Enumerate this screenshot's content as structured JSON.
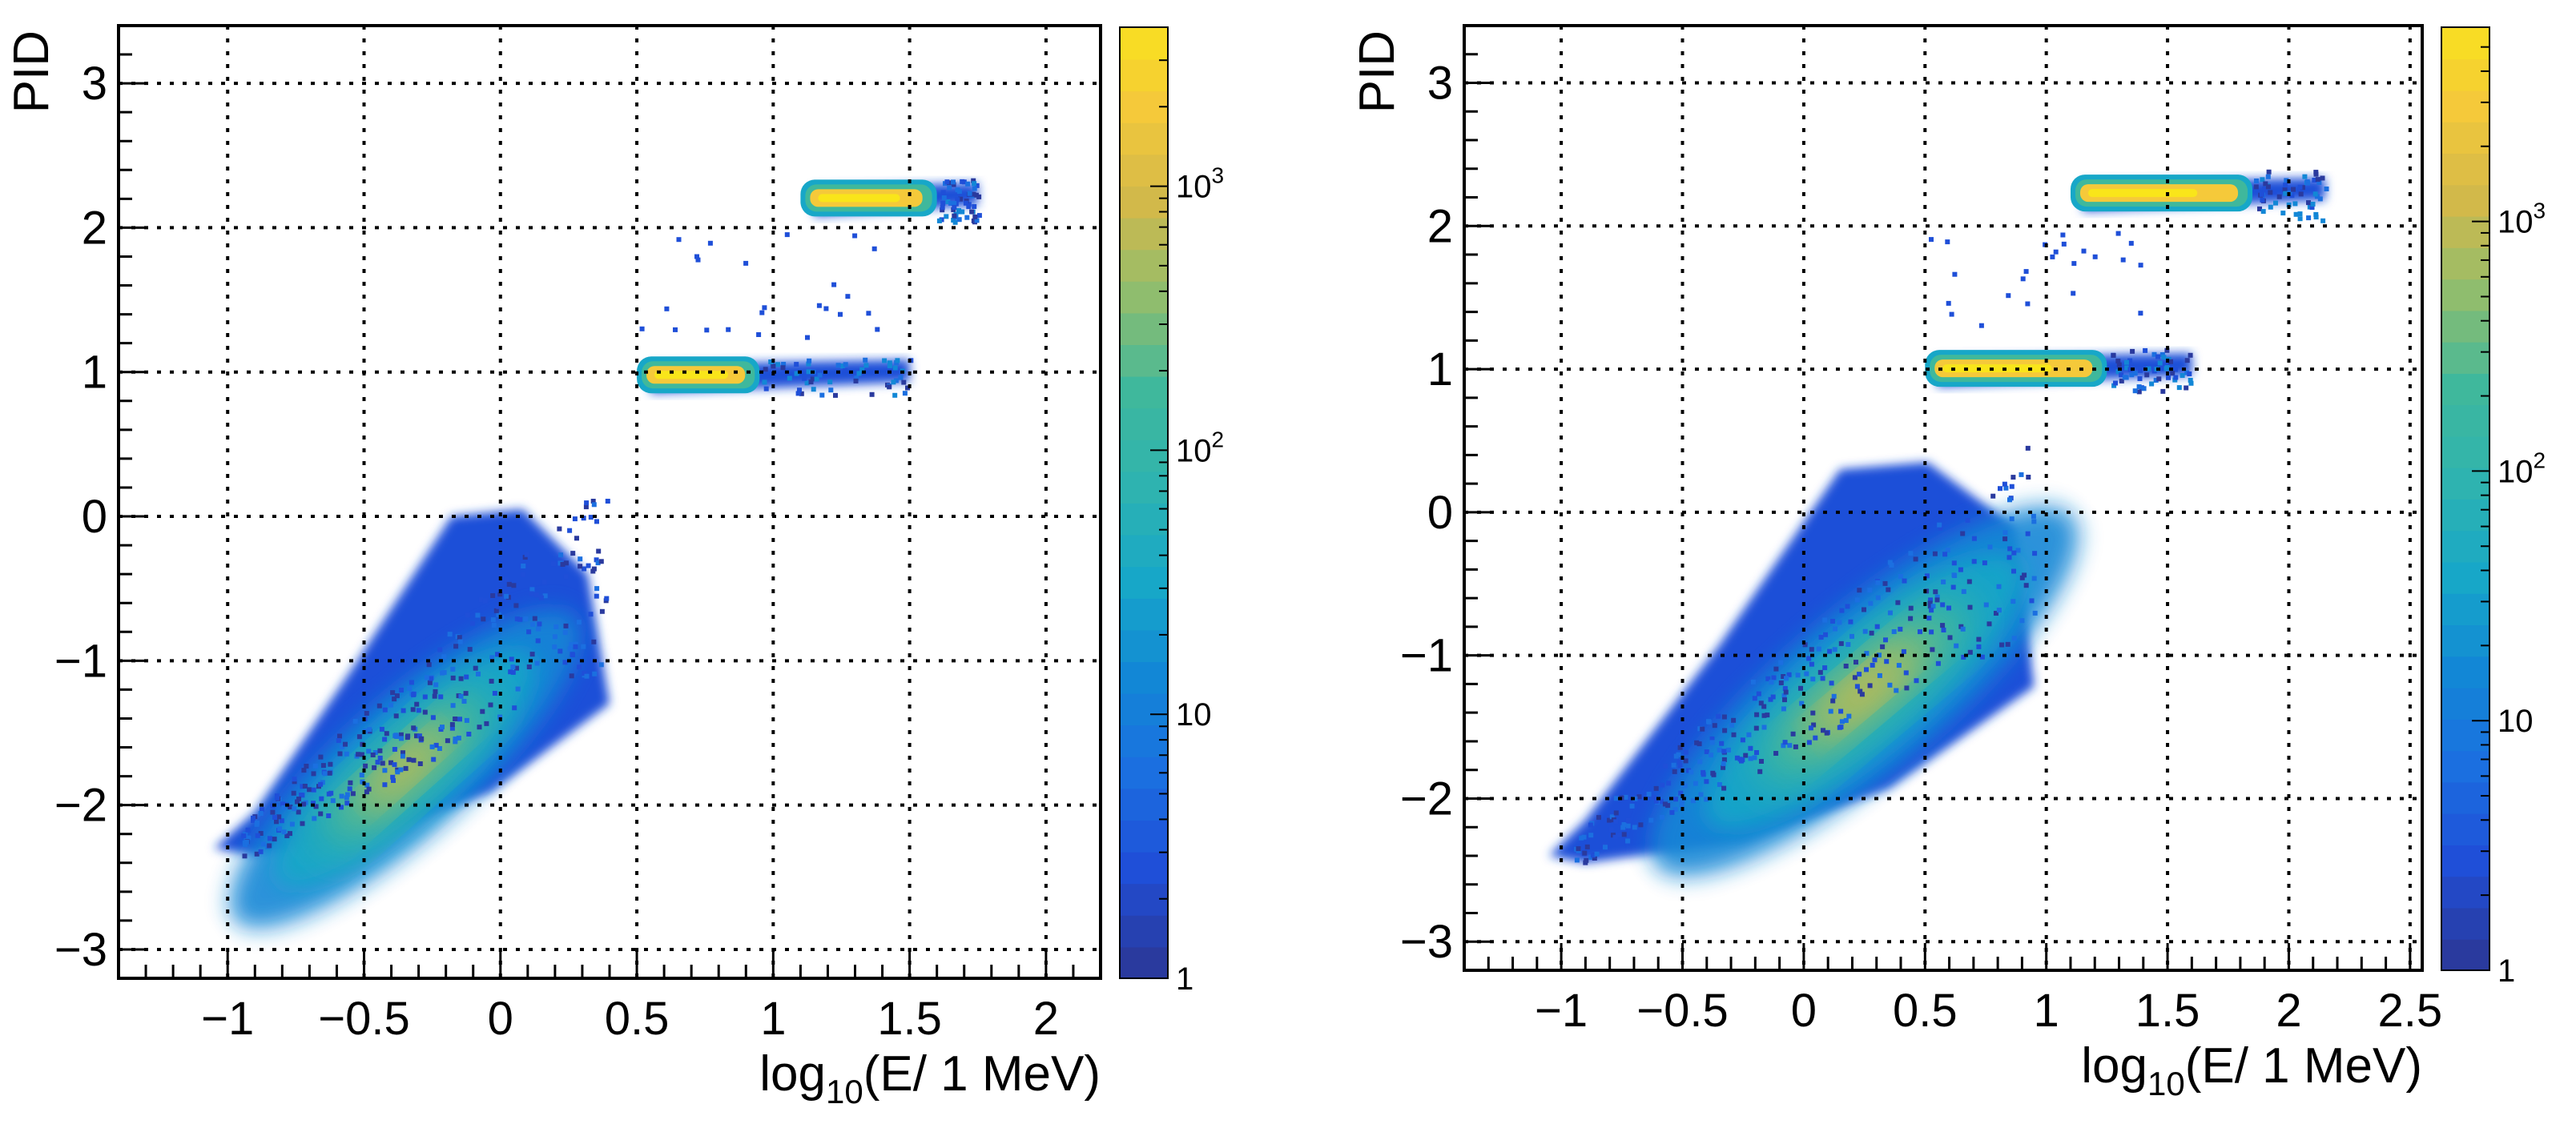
{
  "chart_data": [
    {
      "type": "heatmap",
      "panel": "left",
      "xlabel": {
        "base": "log",
        "sub": "10",
        "rest": "(E/ 1 MeV)"
      },
      "ylabel": "PID",
      "xlim": [
        -1.4,
        2.2
      ],
      "ylim": [
        -3.2,
        3.4
      ],
      "xticks": [
        -1,
        -0.5,
        0,
        0.5,
        1,
        1.5,
        2
      ],
      "xtick_labels": [
        "−1",
        "−0.5",
        "0",
        "0.5",
        "1",
        "1.5",
        "2"
      ],
      "yticks": [
        -3,
        -2,
        -1,
        0,
        1,
        2,
        3
      ],
      "ytick_labels": [
        "−3",
        "−2",
        "−1",
        "0",
        "1",
        "2",
        "3"
      ],
      "grid": true,
      "z_scale": "log",
      "z_range": [
        1,
        4000
      ],
      "colorbar_ticks": [
        {
          "value": 1,
          "label": "1"
        },
        {
          "value": 10,
          "label": "10"
        },
        {
          "value": 100,
          "label": "10",
          "exp": "2"
        },
        {
          "value": 1000,
          "label": "10",
          "exp": "3"
        }
      ],
      "clusters": [
        {
          "name": "main band",
          "x": [
            -1.05,
            0.4
          ],
          "y": [
            -2.4,
            0.05
          ],
          "peak_x": -0.35,
          "peak_y": -1.75,
          "peak_count": 600
        },
        {
          "name": "band PID 1",
          "x": [
            0.5,
            1.5
          ],
          "y": [
            0.85,
            1.1
          ],
          "core_x": [
            0.55,
            0.95
          ],
          "peak_count": 3000
        },
        {
          "name": "band PID 2.2",
          "x": [
            1.1,
            1.75
          ],
          "y": [
            2.05,
            2.35
          ],
          "core_x": [
            1.15,
            1.6
          ],
          "peak_count": 2500
        }
      ]
    },
    {
      "type": "heatmap",
      "panel": "right",
      "xlabel": {
        "base": "log",
        "sub": "10",
        "rest": "(E/ 1 MeV)"
      },
      "ylabel": "PID",
      "xlim": [
        -1.4,
        2.55
      ],
      "ylim": [
        -3.2,
        3.4
      ],
      "xticks": [
        -1,
        -0.5,
        0,
        0.5,
        1,
        1.5,
        2,
        2.5
      ],
      "xtick_labels": [
        "−1",
        "−0.5",
        "0",
        "0.5",
        "1",
        "1.5",
        "2",
        "2.5"
      ],
      "yticks": [
        -3,
        -2,
        -1,
        0,
        1,
        2,
        3
      ],
      "ytick_labels": [
        "−3",
        "−2",
        "−1",
        "0",
        "1",
        "2",
        "3"
      ],
      "grid": true,
      "z_scale": "log",
      "z_range": [
        1,
        6000
      ],
      "colorbar_ticks": [
        {
          "value": 1,
          "label": "1"
        },
        {
          "value": 10,
          "label": "10"
        },
        {
          "value": 100,
          "label": "10",
          "exp": "2"
        },
        {
          "value": 1000,
          "label": "10",
          "exp": "3"
        }
      ],
      "clusters": [
        {
          "name": "main band",
          "x": [
            -1.05,
            0.95
          ],
          "y": [
            -2.5,
            0.35
          ],
          "peak_x": 0.25,
          "peak_y": -1.25,
          "peak_count": 1500
        },
        {
          "name": "band PID 1",
          "x": [
            0.5,
            1.6
          ],
          "y": [
            0.85,
            1.15
          ],
          "core_x": [
            0.55,
            1.25
          ],
          "peak_count": 5000
        },
        {
          "name": "band PID 2.2",
          "x": [
            1.1,
            2.15
          ],
          "y": [
            2.05,
            2.4
          ],
          "core_x": [
            1.15,
            1.85
          ],
          "peak_count": 5000
        }
      ]
    }
  ]
}
